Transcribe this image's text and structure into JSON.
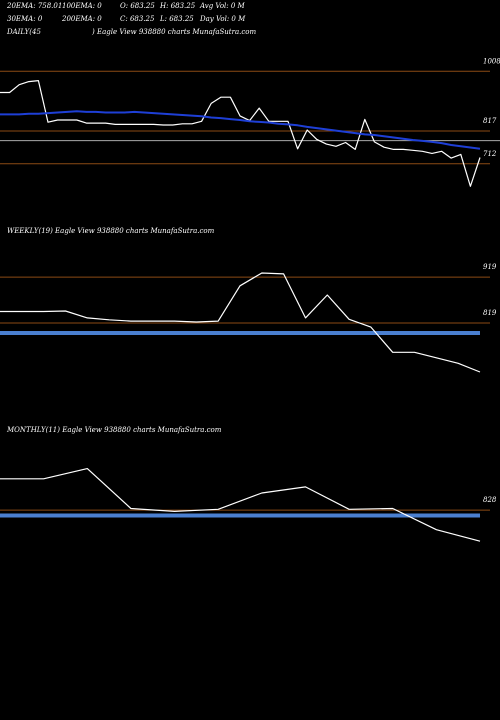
{
  "header": {
    "row1": [
      "20EMA: 758.01",
      "100EMA: 0",
      "O: 683.25",
      "H: 683.25",
      "Avg Vol: 0  M"
    ],
    "row2": [
      "30EMA: 0",
      "200EMA: 0",
      "C: 683.25",
      "L: 683.25",
      "Day Vol: 0  M"
    ]
  },
  "panels": {
    "daily_title": "DAILY(45",
    "daily_brand": ") Eagle   View  938880  charts MunafaSutra.com",
    "weekly_title": "WEEKLY(19) Eagle   View  938880  charts MunafaSutra.com",
    "monthly_title": "MONTHLY(11) Eagle   View  938880  charts MunafaSutra.com"
  },
  "colors": {
    "price": "#ffffff",
    "ema": "#1e3fd6",
    "level": "#8b4a14",
    "support": "#4a7fd0",
    "grid": "#aaaaaa"
  },
  "chart_data": [
    {
      "type": "line",
      "name": "daily",
      "ylim": [
        580,
        1060
      ],
      "levels": [
        1008,
        817,
        712
      ],
      "ema_level": 786,
      "tick_labels": [
        "1008",
        "817",
        "712"
      ],
      "series": [
        {
          "values": [
            940,
            940,
            965,
            975,
            978,
            845,
            852,
            852,
            852,
            842,
            842,
            842,
            838,
            838,
            838,
            838,
            838,
            836,
            836,
            840,
            840,
            848,
            905,
            925,
            925,
            865,
            850,
            890,
            848,
            848,
            848,
            760,
            820,
            790,
            775,
            768,
            780,
            758,
            854,
            782,
            765,
            758,
            758,
            755,
            752,
            745,
            752,
            730,
            742,
            640,
            732
          ]
        },
        {
          "values": [
            870,
            870,
            870,
            872,
            872,
            874,
            876,
            878,
            880,
            878,
            878,
            876,
            876,
            876,
            878,
            876,
            874,
            872,
            870,
            868,
            866,
            864,
            860,
            858,
            855,
            852,
            848,
            846,
            844,
            840,
            838,
            835,
            830,
            826,
            822,
            818,
            814,
            810,
            806,
            804,
            800,
            796,
            792,
            788,
            785,
            782,
            778,
            772,
            768,
            764,
            760
          ]
        }
      ]
    },
    {
      "type": "line",
      "name": "weekly",
      "ylim": [
        640,
        1000
      ],
      "levels": [
        919,
        819
      ],
      "support": 797,
      "tick_labels": [
        "919",
        "819"
      ],
      "series": [
        {
          "values": [
            844,
            844,
            844,
            845,
            830,
            826,
            823,
            823,
            823,
            821,
            823,
            900,
            928,
            926,
            830,
            880,
            827,
            810,
            755,
            755,
            743,
            731,
            712
          ]
        }
      ]
    },
    {
      "type": "line",
      "name": "monthly",
      "ylim": [
        620,
        1000
      ],
      "levels": [
        828
      ],
      "support": 815,
      "tick_labels": [
        "828"
      ],
      "series": [
        {
          "values": [
            905,
            905,
            930,
            832,
            825,
            830,
            870,
            885,
            830,
            832,
            780,
            752
          ]
        }
      ]
    }
  ]
}
